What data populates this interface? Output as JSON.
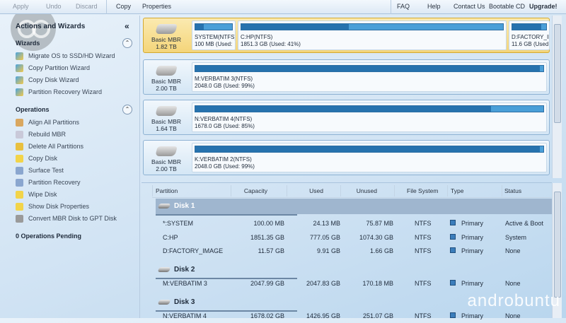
{
  "toolbar": {
    "apply": "Apply",
    "undo": "Undo",
    "discard": "Discard",
    "copy": "Copy",
    "properties": "Properties",
    "faq": "FAQ",
    "help": "Help",
    "contact": "Contact Us",
    "bootable": "Bootable CD",
    "upgrade": "Upgrade!"
  },
  "sidebar": {
    "title": "Actions and Wizards",
    "wizards_title": "Wizards",
    "wizards": [
      {
        "label": "Migrate OS to SSD/HD Wizard",
        "icon": "wizard-icon"
      },
      {
        "label": "Copy Partition Wizard",
        "icon": "wizard-icon"
      },
      {
        "label": "Copy Disk Wizard",
        "icon": "wizard-icon"
      },
      {
        "label": "Partition Recovery Wizard",
        "icon": "wizard-icon"
      }
    ],
    "operations_title": "Operations",
    "operations": [
      {
        "label": "Align All Partitions",
        "icon": "align-icon",
        "color": "#d9a760"
      },
      {
        "label": "Rebuild MBR",
        "icon": "rebuild-icon",
        "color": "#c9c9d9"
      },
      {
        "label": "Delete All Partitions",
        "icon": "delete-icon",
        "color": "#e8c040"
      },
      {
        "label": "Copy Disk",
        "icon": "copy-icon",
        "color": "#f2d44a"
      },
      {
        "label": "Surface Test",
        "icon": "surface-test-icon",
        "color": "#8aa6cf"
      },
      {
        "label": "Partition Recovery",
        "icon": "recovery-icon",
        "color": "#8aa6cf"
      },
      {
        "label": "Wipe Disk",
        "icon": "wipe-icon",
        "color": "#f2d44a"
      },
      {
        "label": "Show Disk Properties",
        "icon": "properties-icon",
        "color": "#f2d44a"
      },
      {
        "label": "Convert MBR Disk to GPT Disk",
        "icon": "convert-icon",
        "color": "#9a9a9a"
      }
    ],
    "pending": "0 Operations Pending"
  },
  "disk_map": [
    {
      "type": "Basic MBR",
      "size": "1.82 TB",
      "selected": true,
      "partitions": [
        {
          "name": "SYSTEM(NTFS)",
          "info": "100 MB (Used:",
          "used": 24
        },
        {
          "name": "C:HP(NTFS)",
          "info": "1851.3 GB (Used: 41%)",
          "used": 41
        },
        {
          "name": "D:FACTORY_IM",
          "info": "11.6 GB (Used",
          "used": 86
        }
      ]
    },
    {
      "type": "Basic MBR",
      "size": "2.00 TB",
      "partitions": [
        {
          "name": "M:VERBATIM 3(NTFS)",
          "info": "2048.0 GB (Used: 99%)",
          "used": 99
        }
      ]
    },
    {
      "type": "Basic MBR",
      "size": "1.64 TB",
      "partitions": [
        {
          "name": "N:VERBATIM 4(NTFS)",
          "info": "1678.0 GB (Used: 85%)",
          "used": 85
        }
      ]
    },
    {
      "type": "Basic MBR",
      "size": "2.00 TB",
      "partitions": [
        {
          "name": "K:VERBATIM 2(NTFS)",
          "info": "2048.0 GB (Used: 99%)",
          "used": 99
        }
      ]
    }
  ],
  "table": {
    "headers": [
      "Partition",
      "Capacity",
      "Used",
      "Unused",
      "File System",
      "Type",
      "Status"
    ],
    "disks": [
      {
        "label": "Disk 1",
        "rows": [
          [
            "*:SYSTEM",
            "100.00 MB",
            "24.13 MB",
            "75.87 MB",
            "NTFS",
            "Primary",
            "Active & Boot"
          ],
          [
            "C:HP",
            "1851.35 GB",
            "777.05 GB",
            "1074.30 GB",
            "NTFS",
            "Primary",
            "System"
          ],
          [
            "D:FACTORY_IMAGE",
            "11.57 GB",
            "9.91 GB",
            "1.66 GB",
            "NTFS",
            "Primary",
            "None"
          ]
        ]
      },
      {
        "label": "Disk 2",
        "rows": [
          [
            "M:VERBATIM 3",
            "2047.99 GB",
            "2047.83 GB",
            "170.18 MB",
            "NTFS",
            "Primary",
            "None"
          ]
        ]
      },
      {
        "label": "Disk 3",
        "rows": [
          [
            "N:VERBATIM 4",
            "1678.02 GB",
            "1426.95 GB",
            "251.07 GB",
            "NTFS",
            "Primary",
            "None"
          ]
        ]
      }
    ]
  },
  "watermark": "androbuntu"
}
